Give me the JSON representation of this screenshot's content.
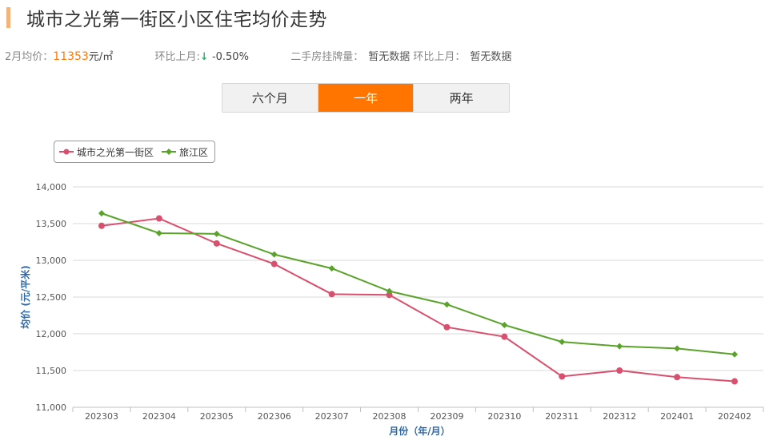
{
  "header": {
    "title": "城市之光第一街区小区住宅均价走势"
  },
  "stats": {
    "month_label": "2月均价：",
    "price": "11353",
    "price_unit": "元/㎡",
    "mom_label": "环比上月:",
    "mom_arrow": "↓",
    "mom_value": "-0.50%",
    "listing_label": "二手房挂牌量：",
    "listing_value": "暂无数据",
    "listing_mom_label": "环比上月：",
    "listing_mom_value": "暂无数据"
  },
  "tabs": [
    {
      "label": "六个月",
      "active": false
    },
    {
      "label": "一年",
      "active": true
    },
    {
      "label": "两年",
      "active": false
    }
  ],
  "chart_data": {
    "type": "line",
    "categories": [
      "202303",
      "202304",
      "202305",
      "202306",
      "202307",
      "202308",
      "202309",
      "202310",
      "202311",
      "202312",
      "202401",
      "202402"
    ],
    "series": [
      {
        "name": "城市之光第一街区",
        "color": "#d9506e",
        "marker": "circle",
        "values": [
          13470,
          13570,
          13230,
          12950,
          12540,
          12530,
          12090,
          11960,
          11420,
          11500,
          11410,
          11353
        ]
      },
      {
        "name": "旅江区",
        "color": "#5aa32a",
        "marker": "diamond",
        "values": [
          13640,
          13370,
          13360,
          13080,
          12890,
          12580,
          12400,
          12120,
          11890,
          11830,
          11800,
          11720
        ]
      }
    ],
    "ylim": [
      11000,
      14000
    ],
    "yticks": [
      "11,000",
      "11,500",
      "12,000",
      "12,500",
      "13,000",
      "13,500",
      "14,000"
    ],
    "ylabel": "均价 (元/平米)",
    "xlabel": "月份（年/月）",
    "legend_position": "top-left",
    "grid": true
  }
}
